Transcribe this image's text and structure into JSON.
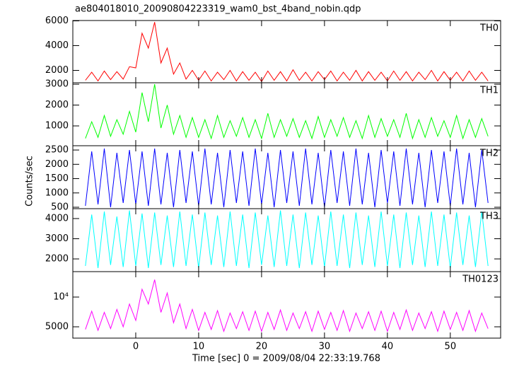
{
  "title": "ae804018010_20090804223319_wam0_bst_4band_nobin.qdp",
  "y_label": "Counts/sec",
  "x_label": "Time [sec] 0 = 2009/08/04 22:33:19.768",
  "chart_data": [
    {
      "type": "line",
      "x": [
        -8,
        -7,
        -6,
        -5,
        -4,
        -3,
        -2,
        -1,
        0,
        1,
        2,
        3,
        4,
        5,
        6,
        7,
        8,
        9,
        10,
        11,
        12,
        13,
        14,
        15,
        16,
        17,
        18,
        19,
        20,
        21,
        22,
        23,
        24,
        25,
        26,
        27,
        28,
        29,
        30,
        31,
        32,
        33,
        34,
        35,
        36,
        37,
        38,
        39,
        40,
        41,
        42,
        43,
        44,
        45,
        46,
        47,
        48,
        49,
        50,
        51,
        52,
        53,
        54,
        55,
        56
      ],
      "series": [
        {
          "name": "TH0",
          "color": "#ff0000",
          "values": [
            1200,
            1850,
            1150,
            1950,
            1250,
            1900,
            1300,
            2300,
            2200,
            5000,
            3800,
            5900,
            2600,
            3800,
            1700,
            2600,
            1300,
            2000,
            1200,
            1950,
            1150,
            1850,
            1250,
            2000,
            1150,
            1900,
            1200,
            1850,
            1100,
            1950,
            1200,
            1900,
            1150,
            2050,
            1200,
            1850,
            1150,
            1900,
            1250,
            1950,
            1150,
            1850,
            1200,
            2000,
            1150,
            1900,
            1200,
            1850,
            1150,
            1950,
            1200,
            1900,
            1150,
            1850,
            1250,
            2000,
            1150,
            1900,
            1200,
            1850,
            1150,
            1950,
            1200,
            1850,
            1150
          ]
        }
      ],
      "xlim": [
        -10,
        58
      ],
      "xticks": [
        0,
        10,
        20,
        30,
        40,
        50
      ],
      "ylim": [
        1000,
        6030
      ],
      "yticks": [
        2000,
        4000,
        6000
      ]
    },
    {
      "type": "line",
      "x": [
        -8,
        -7,
        -6,
        -5,
        -4,
        -3,
        -2,
        -1,
        0,
        1,
        2,
        3,
        4,
        5,
        6,
        7,
        8,
        9,
        10,
        11,
        12,
        13,
        14,
        15,
        16,
        17,
        18,
        19,
        20,
        21,
        22,
        23,
        24,
        25,
        26,
        27,
        28,
        29,
        30,
        31,
        32,
        33,
        34,
        35,
        36,
        37,
        38,
        39,
        40,
        41,
        42,
        43,
        44,
        45,
        46,
        47,
        48,
        49,
        50,
        51,
        52,
        53,
        54,
        55,
        56
      ],
      "series": [
        {
          "name": "TH1",
          "color": "#00ff00",
          "values": [
            400,
            1200,
            450,
            1500,
            500,
            1300,
            600,
            1700,
            700,
            2600,
            1200,
            3000,
            900,
            2000,
            600,
            1500,
            450,
            1400,
            450,
            1300,
            400,
            1500,
            450,
            1250,
            500,
            1400,
            450,
            1300,
            400,
            1600,
            450,
            1300,
            500,
            1350,
            450,
            1250,
            400,
            1450,
            450,
            1300,
            500,
            1400,
            450,
            1250,
            400,
            1500,
            450,
            1350,
            500,
            1300,
            450,
            1600,
            400,
            1300,
            450,
            1400,
            500,
            1250,
            450,
            1500,
            400,
            1300,
            450,
            1350,
            500
          ]
        }
      ],
      "xlim": [
        -10,
        58
      ],
      "xticks": [
        0,
        10,
        20,
        30,
        40,
        50
      ],
      "ylim": [
        50,
        3070
      ],
      "yticks": [
        1000,
        2000,
        3000
      ]
    },
    {
      "type": "line",
      "x": [
        -8,
        -7,
        -6,
        -5,
        -4,
        -3,
        -2,
        -1,
        0,
        1,
        2,
        3,
        4,
        5,
        6,
        7,
        8,
        9,
        10,
        11,
        12,
        13,
        14,
        15,
        16,
        17,
        18,
        19,
        20,
        21,
        22,
        23,
        24,
        25,
        26,
        27,
        28,
        29,
        30,
        31,
        32,
        33,
        34,
        35,
        36,
        37,
        38,
        39,
        40,
        41,
        42,
        43,
        44,
        45,
        46,
        47,
        48,
        49,
        50,
        51,
        52,
        53,
        54,
        55,
        56
      ],
      "series": [
        {
          "name": "TH2",
          "color": "#0000ff",
          "values": [
            550,
            2450,
            600,
            2550,
            500,
            2400,
            650,
            2500,
            600,
            2450,
            550,
            2550,
            600,
            2400,
            500,
            2500,
            650,
            2450,
            550,
            2550,
            600,
            2400,
            500,
            2500,
            650,
            2450,
            550,
            2550,
            600,
            2400,
            500,
            2500,
            650,
            2450,
            550,
            2550,
            600,
            2400,
            500,
            2500,
            650,
            2450,
            550,
            2550,
            600,
            2400,
            500,
            2500,
            650,
            2450,
            550,
            2550,
            600,
            2400,
            500,
            2500,
            650,
            2450,
            550,
            2550,
            600,
            2400,
            500,
            2500,
            650
          ]
        }
      ],
      "xlim": [
        -10,
        58
      ],
      "xticks": [
        0,
        10,
        20,
        30,
        40,
        50
      ],
      "ylim": [
        450,
        2650
      ],
      "yticks": [
        500,
        1000,
        1500,
        2000,
        2500
      ]
    },
    {
      "type": "line",
      "x": [
        -8,
        -7,
        -6,
        -5,
        -4,
        -3,
        -2,
        -1,
        0,
        1,
        2,
        3,
        4,
        5,
        6,
        7,
        8,
        9,
        10,
        11,
        12,
        13,
        14,
        15,
        16,
        17,
        18,
        19,
        20,
        21,
        22,
        23,
        24,
        25,
        26,
        27,
        28,
        29,
        30,
        31,
        32,
        33,
        34,
        35,
        36,
        37,
        38,
        39,
        40,
        41,
        42,
        43,
        44,
        45,
        46,
        47,
        48,
        49,
        50,
        51,
        52,
        53,
        54,
        55,
        56
      ],
      "series": [
        {
          "name": "TH3",
          "color": "#00ffff",
          "values": [
            1650,
            4200,
            1550,
            4350,
            1700,
            4100,
            1600,
            4400,
            1650,
            4250,
            1550,
            4300,
            1700,
            4150,
            1600,
            4350,
            1650,
            4200,
            1550,
            4300,
            1700,
            4150,
            1600,
            4350,
            1650,
            4200,
            1550,
            4300,
            1700,
            4150,
            1600,
            4400,
            1650,
            4200,
            1550,
            4300,
            1700,
            4150,
            1600,
            4350,
            1650,
            4200,
            1550,
            4300,
            1700,
            4150,
            1600,
            4350,
            1650,
            4200,
            1550,
            4300,
            1700,
            4150,
            1600,
            4350,
            1650,
            4200,
            1550,
            4300,
            1700,
            4150,
            1600,
            4350,
            1650
          ]
        }
      ],
      "xlim": [
        -10,
        58
      ],
      "xticks": [
        0,
        10,
        20,
        30,
        40,
        50
      ],
      "ylim": [
        1370,
        4490
      ],
      "yticks": [
        2000,
        3000,
        4000
      ]
    },
    {
      "type": "line",
      "log_y": true,
      "x": [
        -8,
        -7,
        -6,
        -5,
        -4,
        -3,
        -2,
        -1,
        0,
        1,
        2,
        3,
        4,
        5,
        6,
        7,
        8,
        9,
        10,
        11,
        12,
        13,
        14,
        15,
        16,
        17,
        18,
        19,
        20,
        21,
        22,
        23,
        24,
        25,
        26,
        27,
        28,
        29,
        30,
        31,
        32,
        33,
        34,
        35,
        36,
        37,
        38,
        39,
        40,
        41,
        42,
        43,
        44,
        45,
        46,
        47,
        48,
        49,
        50,
        51,
        52,
        53,
        54,
        55,
        56
      ],
      "series": [
        {
          "name": "TH0123",
          "color": "#ff00ff",
          "values": [
            4700,
            7200,
            4600,
            7000,
            4800,
            7500,
            5000,
            8500,
            5800,
            12000,
            8500,
            15000,
            7000,
            11000,
            5500,
            8500,
            4800,
            7500,
            4600,
            7000,
            4700,
            7300,
            4500,
            6900,
            4800,
            7100,
            4600,
            7200,
            4500,
            7000,
            4700,
            7400,
            4600,
            6900,
            4800,
            7100,
            4500,
            7200,
            4700,
            7000,
            4600,
            7300,
            4500,
            6900,
            4800,
            7100,
            4600,
            7200,
            4500,
            7000,
            4700,
            7400,
            4600,
            6900,
            4800,
            7100,
            4500,
            7200,
            4700,
            7000,
            4600,
            7300,
            4500,
            6900,
            4800
          ]
        }
      ],
      "xlim": [
        -10,
        58
      ],
      "xticks": [
        0,
        10,
        20,
        30,
        40,
        50
      ],
      "ylim": [
        3840,
        18100
      ],
      "yticks": [
        {
          "value": 10000,
          "label": "10⁴"
        },
        5000
      ]
    }
  ]
}
